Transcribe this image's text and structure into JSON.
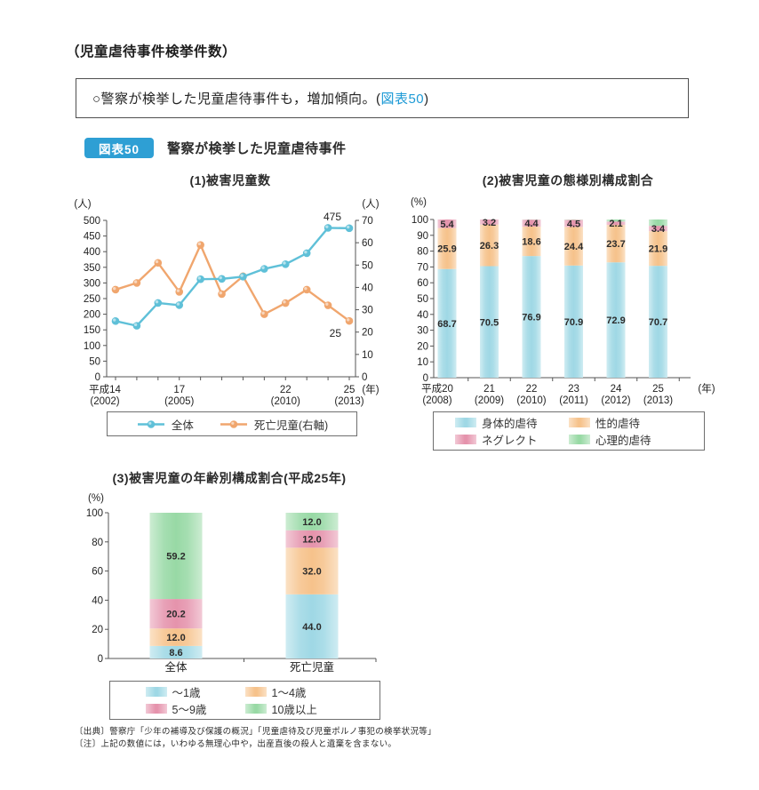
{
  "page": {
    "heading": "（児童虐待事件検挙件数）",
    "statement": {
      "prefix": "○警察が検挙した児童虐待事件も，増加傾向。(",
      "link": "図表50",
      "suffix": ")"
    },
    "figure": {
      "badge": "図表50",
      "title": "警察が検挙した児童虐待事件"
    },
    "source_line": "〔出典〕警察庁「少年の補導及び保護の概況」「児童虐待及び児童ポルノ事犯の検挙状況等」",
    "note_line": "〔注〕上記の数値には，いわゆる無理心中や，出産直後の殺人と遺棄を含まない。"
  },
  "colors": {
    "badge_blue": "#2e9fd4",
    "link_blue": "#1d9ad6",
    "line_total_blue": "#5fc0d8",
    "line_death_orange": "#f0a66e",
    "bar_blue": "#9fd8e5",
    "bar_orange": "#f6c28b",
    "bar_pink": "#e593ac",
    "bar_green": "#98d9a5",
    "axis_gray": "#555555"
  },
  "chart_data": [
    {
      "id": "victim-children-line",
      "type": "line",
      "title": "(1)被害児童数",
      "left_axis": {
        "unit": "(人)",
        "min": 0,
        "max": 500,
        "step": 50
      },
      "right_axis": {
        "unit": "(人)",
        "min": 0,
        "max": 70,
        "step": 10
      },
      "x_axis": {
        "unit": "(年)",
        "years": [
          "平成14",
          "15",
          "16",
          "17",
          "18",
          "19",
          "20",
          "21",
          "22",
          "23",
          "24",
          "25"
        ],
        "tick_labels": [
          {
            "index": 0,
            "line1": "平成14",
            "line2": "(2002)"
          },
          {
            "index": 3,
            "line1": "17",
            "line2": "(2005)"
          },
          {
            "index": 8,
            "line1": "22",
            "line2": "(2010)"
          },
          {
            "index": 11,
            "line1": "25",
            "line2": "(2013)"
          }
        ]
      },
      "series": [
        {
          "name": "全体",
          "axis": "left",
          "color": "#5fc0d8",
          "values": [
            178,
            163,
            236,
            229,
            312,
            313,
            320,
            345,
            360,
            395,
            476,
            475
          ],
          "end_label": "475"
        },
        {
          "name": "死亡児童(右軸)",
          "axis": "right",
          "color": "#f0a66e",
          "values": [
            39,
            42,
            51,
            38,
            59,
            37,
            45,
            28,
            33,
            39,
            32,
            25
          ],
          "end_label": "25"
        }
      ],
      "legend_position": "bottom"
    },
    {
      "id": "abuse-type-composition",
      "type": "stacked-bar",
      "title": "(2)被害児童の態様別構成割合",
      "y_axis": {
        "unit": "(%)",
        "min": 0,
        "max": 100,
        "step": 10
      },
      "x_axis": {
        "unit": "(年)",
        "tick_labels": [
          [
            "平成20",
            "(2008)"
          ],
          [
            "21",
            "(2009)"
          ],
          [
            "22",
            "(2010)"
          ],
          [
            "23",
            "(2011)"
          ],
          [
            "24",
            "(2012)"
          ],
          [
            "25",
            "(2013)"
          ]
        ]
      },
      "series": [
        {
          "name": "身体的虐待",
          "color": "#9fd8e5",
          "values": [
            68.7,
            70.5,
            76.9,
            70.9,
            72.9,
            70.7
          ],
          "labels": true
        },
        {
          "name": "性的虐待",
          "color": "#f6c28b",
          "values": [
            25.9,
            26.3,
            18.6,
            24.4,
            23.7,
            21.9
          ],
          "labels": true
        },
        {
          "name": "ネグレクト",
          "color": "#e593ac",
          "values": [
            5.4,
            3.2,
            4.4,
            4.5,
            2.1,
            3.4
          ],
          "labels": true
        },
        {
          "name": "心理的虐待",
          "color": "#98d9a5",
          "values": [
            0.0,
            0.0,
            0.1,
            0.2,
            1.3,
            4.0
          ],
          "labels": false
        }
      ],
      "legend_position": "bottom"
    },
    {
      "id": "age-composition-h25",
      "type": "stacked-bar",
      "title": "(3)被害児童の年齢別構成割合(平成25年)",
      "y_axis": {
        "unit": "(%)",
        "min": 0,
        "max": 100,
        "step": 20
      },
      "x_axis": {
        "unit": "",
        "tick_labels": [
          [
            "全体"
          ],
          [
            "死亡児童"
          ]
        ]
      },
      "series": [
        {
          "name": "～1歳",
          "color": "#9fd8e5",
          "values": [
            8.6,
            44.0
          ],
          "labels": true
        },
        {
          "name": "1～4歳",
          "color": "#f6c28b",
          "values": [
            12.0,
            32.0
          ],
          "labels": true
        },
        {
          "name": "5～9歳",
          "color": "#e593ac",
          "values": [
            20.2,
            12.0
          ],
          "labels": true
        },
        {
          "name": "10歳以上",
          "color": "#98d9a5",
          "values": [
            59.2,
            12.0
          ],
          "labels": true
        }
      ],
      "legend_position": "bottom"
    }
  ]
}
